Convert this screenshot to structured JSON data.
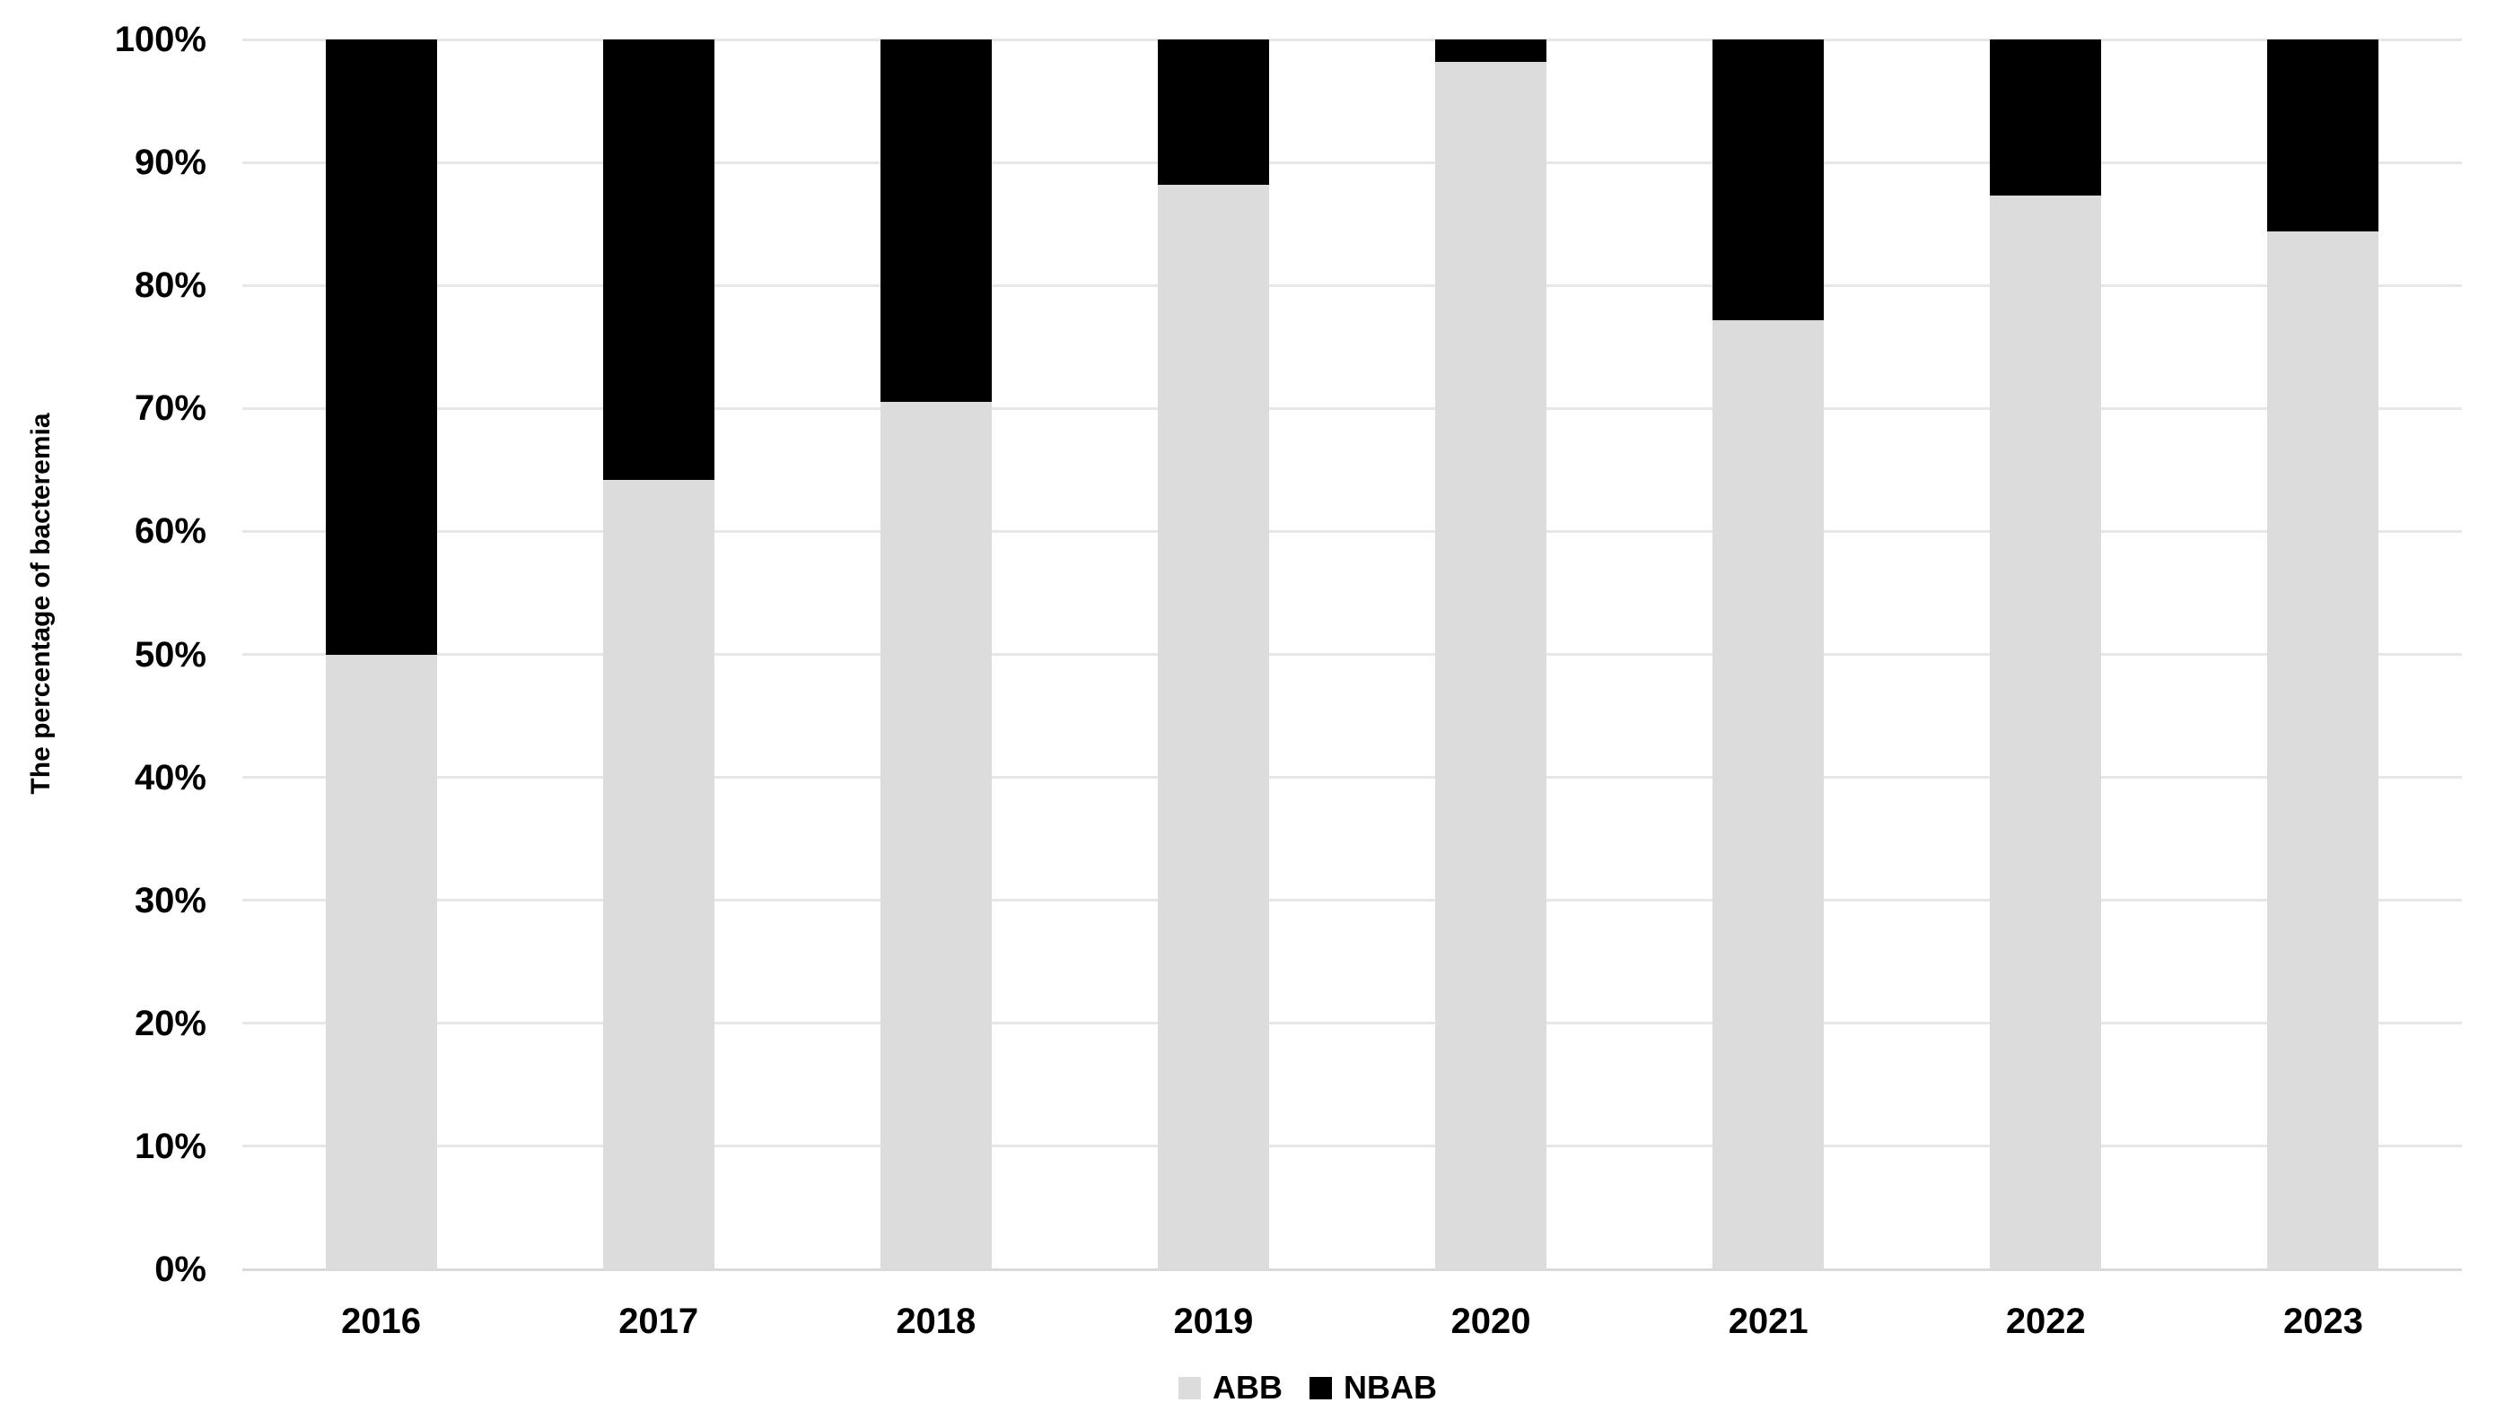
{
  "chart_data": {
    "type": "bar",
    "variant": "stacked-100-percent",
    "title": "",
    "xlabel": "",
    "ylabel": "The percentage of bacteremia",
    "categories": [
      "2016",
      "2017",
      "2018",
      "2019",
      "2020",
      "2021",
      "2022",
      "2023"
    ],
    "series": [
      {
        "name": "ABB",
        "color": "#dcdcdc",
        "values": [
          50.0,
          64.2,
          70.5,
          88.2,
          98.2,
          77.2,
          87.3,
          84.4
        ]
      },
      {
        "name": "NBAB",
        "color": "#000000",
        "values": [
          50.0,
          35.8,
          29.5,
          11.8,
          1.8,
          22.8,
          12.7,
          15.6
        ]
      }
    ],
    "ylim": [
      0,
      100
    ],
    "ytick_step": 10,
    "yticks": [
      "0%",
      "10%",
      "20%",
      "30%",
      "40%",
      "50%",
      "60%",
      "70%",
      "80%",
      "90%",
      "100%"
    ],
    "grid": true,
    "gridline_color": "#e7e7e7",
    "axis_line_color": "#d9d9d9",
    "legend_position": "bottom-center",
    "plot_background": "#ffffff"
  }
}
